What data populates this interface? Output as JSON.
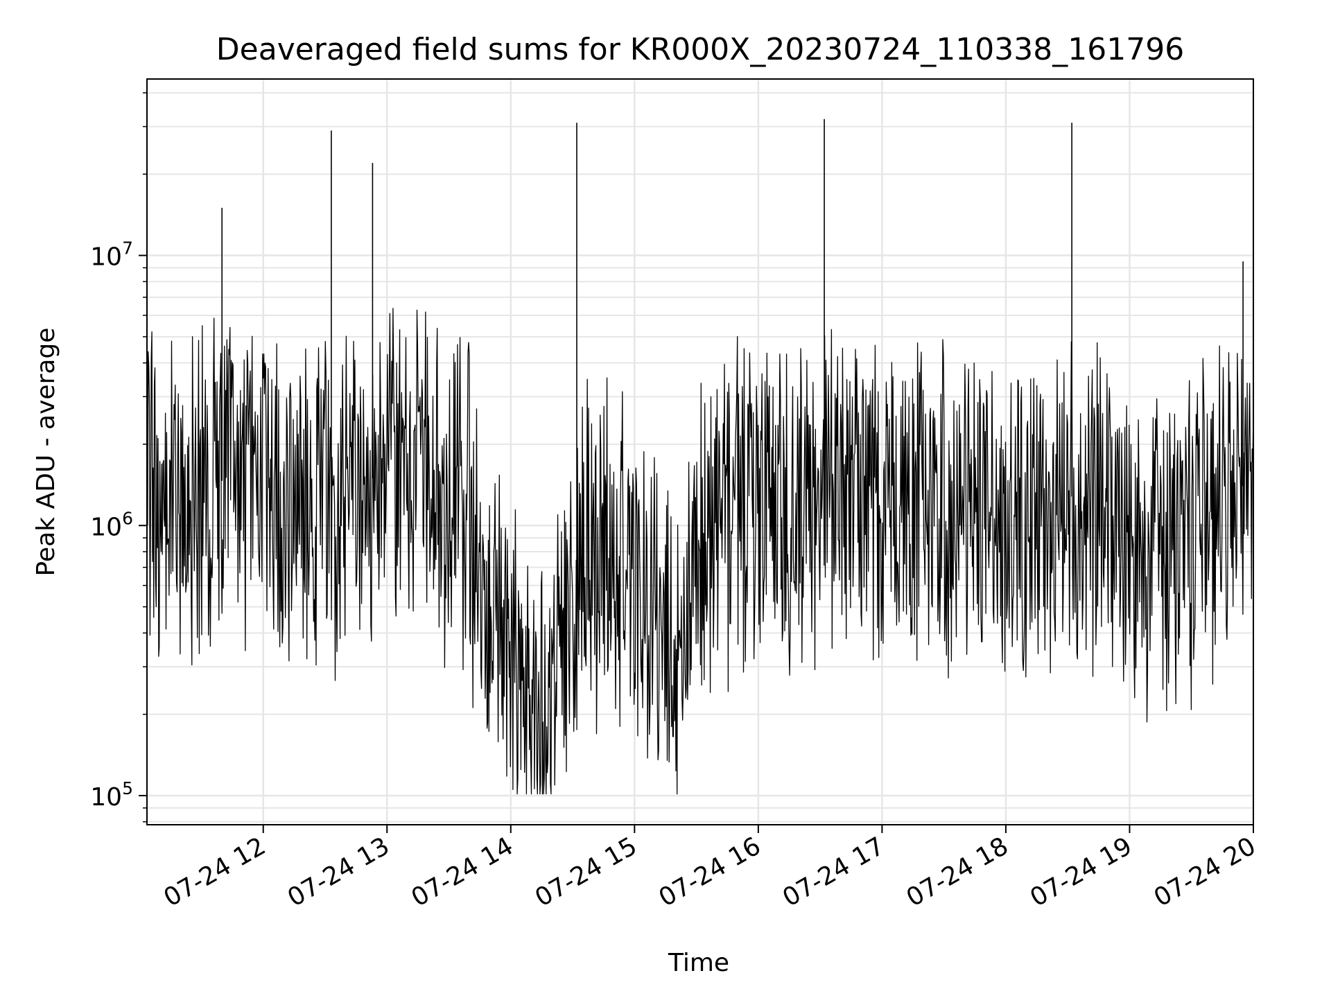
{
  "chart_data": {
    "type": "line",
    "title": "Deaveraged field sums for KR000X_20230724_110338_161796",
    "xlabel": "Time",
    "ylabel": "Peak ADU - average",
    "yscale": "log",
    "ylim": [
      78000,
      45000000
    ],
    "xlim": [
      "2023-07-24 11:03:38",
      "2023-07-24 20:00:00"
    ],
    "grid": true,
    "line_color": "#000000",
    "grid_color": "#e6e6e6",
    "x_ticks": [
      {
        "value": "2023-07-24 12:00",
        "label": "07-24 12"
      },
      {
        "value": "2023-07-24 13:00",
        "label": "07-24 13"
      },
      {
        "value": "2023-07-24 14:00",
        "label": "07-24 14"
      },
      {
        "value": "2023-07-24 15:00",
        "label": "07-24 15"
      },
      {
        "value": "2023-07-24 16:00",
        "label": "07-24 16"
      },
      {
        "value": "2023-07-24 17:00",
        "label": "07-24 17"
      },
      {
        "value": "2023-07-24 18:00",
        "label": "07-24 18"
      },
      {
        "value": "2023-07-24 19:00",
        "label": "07-24 19"
      },
      {
        "value": "2023-07-24 20:00",
        "label": "07-24 20"
      }
    ],
    "y_ticks": [
      {
        "value": 100000,
        "base": "10",
        "exp": "5"
      },
      {
        "value": 1000000,
        "base": "10",
        "exp": "6"
      },
      {
        "value": 10000000,
        "base": "10",
        "exp": "7"
      }
    ],
    "series": [
      {
        "x": [
          "2023-07-24 11:05",
          "2023-07-24 11:20",
          "2023-07-24 11:35",
          "2023-07-24 11:50",
          "2023-07-24 12:05",
          "2023-07-24 12:20",
          "2023-07-24 12:35",
          "2023-07-24 12:50",
          "2023-07-24 13:05",
          "2023-07-24 13:20",
          "2023-07-24 13:35",
          "2023-07-24 13:50",
          "2023-07-24 14:05",
          "2023-07-24 14:20",
          "2023-07-24 14:35",
          "2023-07-24 14:50",
          "2023-07-24 15:05",
          "2023-07-24 15:20",
          "2023-07-24 15:35",
          "2023-07-24 15:50",
          "2023-07-24 16:05",
          "2023-07-24 16:20",
          "2023-07-24 16:35",
          "2023-07-24 16:50",
          "2023-07-24 17:05",
          "2023-07-24 17:20",
          "2023-07-24 17:35",
          "2023-07-24 17:50",
          "2023-07-24 18:05",
          "2023-07-24 18:20",
          "2023-07-24 18:35",
          "2023-07-24 18:50",
          "2023-07-24 19:05",
          "2023-07-24 19:20",
          "2023-07-24 19:35",
          "2023-07-24 19:50"
        ],
        "y": [
          1500000,
          1100000,
          1400000,
          1600000,
          1300000,
          1300000,
          1200000,
          1500000,
          1500000,
          1400000,
          1300000,
          600000,
          260000,
          220000,
          900000,
          700000,
          500000,
          350000,
          1000000,
          1100000,
          1200000,
          1300000,
          1300000,
          1200000,
          1100000,
          1200000,
          1200000,
          1100000,
          1000000,
          1200000,
          1300000,
          1100000,
          900000,
          800000,
          1000000,
          1400000
        ]
      }
    ],
    "spikes": [
      {
        "x": "2023-07-24 11:40",
        "y": 15000000
      },
      {
        "x": "2023-07-24 12:33",
        "y": 29000000
      },
      {
        "x": "2023-07-24 12:53",
        "y": 22000000
      },
      {
        "x": "2023-07-24 14:32",
        "y": 31000000
      },
      {
        "x": "2023-07-24 16:32",
        "y": 32000000
      },
      {
        "x": "2023-07-24 18:32",
        "y": 31000000
      },
      {
        "x": "2023-07-24 19:55",
        "y": 9500000
      }
    ]
  }
}
